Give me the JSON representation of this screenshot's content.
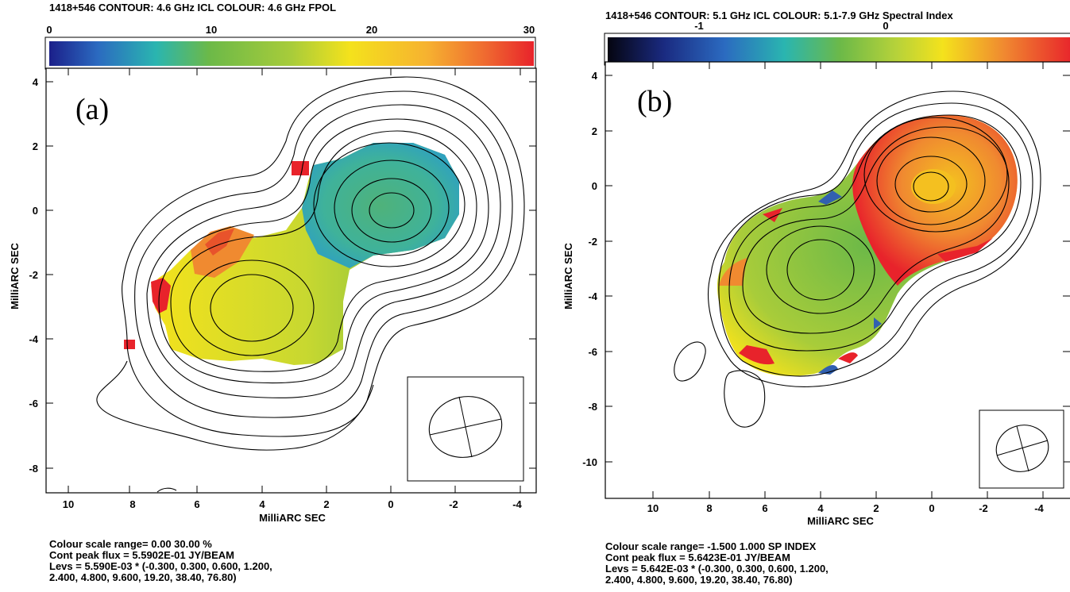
{
  "panels": [
    {
      "id": "a",
      "header": "1418+546  CONTOUR: 4.6 GHz ICL   COLOUR: 4.6 GHz FPOL",
      "colorbar_ticks": [
        "0",
        "10",
        "20",
        "30"
      ],
      "letter": "(a)",
      "xlabel": "MilliARC SEC",
      "ylabel": "MilliARC SEC",
      "x_ticks": [
        "10",
        "8",
        "6",
        "4",
        "2",
        "0",
        "-2",
        "-4"
      ],
      "y_ticks": [
        "4",
        "2",
        "0",
        "-2",
        "-4",
        "-6",
        "-8"
      ],
      "footer": [
        "Colour scale range= 0.00 30.00 %",
        "Cont peak flux =  5.5902E-01 JY/BEAM",
        "Levs = 5.590E-03 * (-0.300, 0.300, 0.600, 1.200,",
        "2.400, 4.800, 9.600, 19.20, 38.40, 76.80)"
      ]
    },
    {
      "id": "b",
      "header": "1418+546  CONTOUR: 5.1 GHz ICL   COLOUR: 5.1-7.9 GHz Spectral Index",
      "colorbar_ticks": [
        "-1",
        "0"
      ],
      "letter": "(b)",
      "xlabel": "MilliARC SEC",
      "ylabel": "MilliARC SEC",
      "x_ticks": [
        "10",
        "8",
        "6",
        "4",
        "2",
        "0",
        "-2",
        "-4"
      ],
      "y_ticks": [
        "4",
        "2",
        "0",
        "-2",
        "-4",
        "-6",
        "-8",
        "-10"
      ],
      "footer": [
        "Colour scale range= -1.500 1.000 SP INDEX",
        "Cont peak flux =  5.6423E-01 JY/BEAM",
        "Levs = 5.642E-03 * (-0.300, 0.300, 0.600, 1.200,",
        "2.400, 4.800, 9.600, 19.20, 38.40, 76.80)"
      ]
    }
  ],
  "colors": {
    "red": "#e8232b",
    "orange": "#f08a30",
    "yellow": "#f4e21c",
    "green": "#6cb948",
    "teal": "#2fb4a8",
    "blue": "#3160b0",
    "navy": "#1a2a80"
  }
}
